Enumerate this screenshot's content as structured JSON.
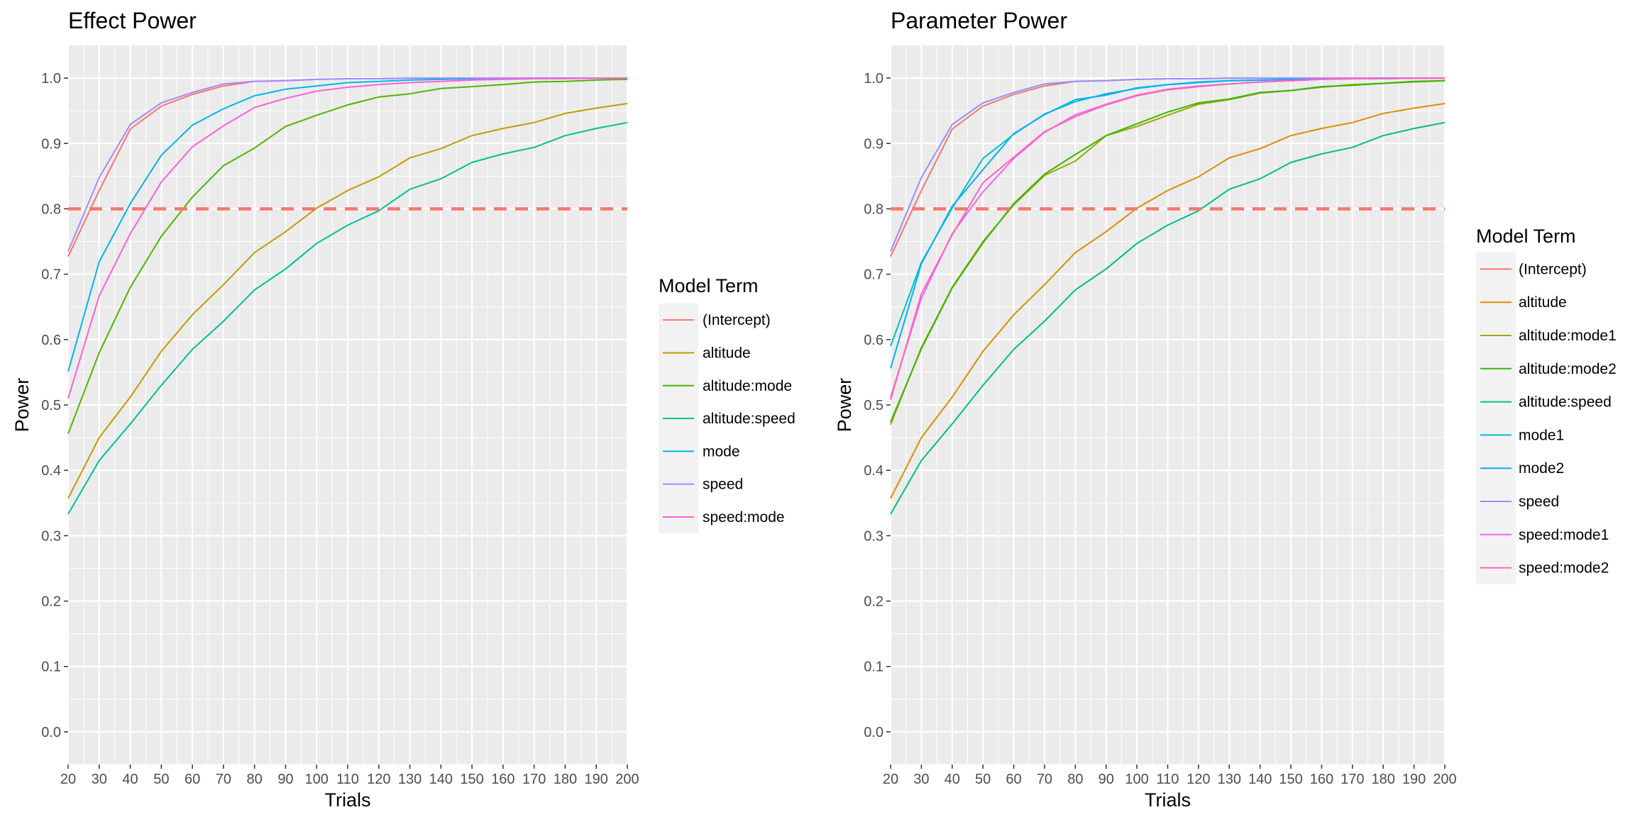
{
  "chart_data": [
    {
      "type": "line",
      "title": "Effect Power",
      "xlabel": "Trials",
      "ylabel": "Power",
      "x": [
        20,
        30,
        40,
        50,
        60,
        70,
        80,
        90,
        100,
        110,
        120,
        130,
        140,
        150,
        160,
        170,
        180,
        190,
        200
      ],
      "xlim": [
        20,
        200
      ],
      "ylim": [
        -0.05,
        1.05
      ],
      "xticks": [
        "20",
        "30",
        "40",
        "50",
        "60",
        "70",
        "80",
        "90",
        "100",
        "110",
        "120",
        "130",
        "140",
        "150",
        "160",
        "170",
        "180",
        "190",
        "200"
      ],
      "yticks": [
        "0.0",
        "0.1",
        "0.2",
        "0.3",
        "0.4",
        "0.5",
        "0.6",
        "0.7",
        "0.8",
        "0.9",
        "1.0"
      ],
      "grid": true,
      "reference_line": {
        "y": 0.8,
        "color": "#F8766D",
        "style": "dashed"
      },
      "legend": {
        "title": "Model Term",
        "position": "right"
      },
      "series": [
        {
          "name": "(Intercept)",
          "color": "#F8766D",
          "values": [
            0.727,
            0.828,
            0.922,
            0.957,
            0.975,
            0.988,
            0.995,
            0.996,
            0.998,
            0.999,
            0.999,
            1.0,
            1.0,
            1.0,
            1.0,
            1.0,
            1.0,
            1.0,
            1.0
          ]
        },
        {
          "name": "altitude",
          "color": "#C49A00",
          "values": [
            0.357,
            0.45,
            0.512,
            0.582,
            0.638,
            0.684,
            0.733,
            0.765,
            0.801,
            0.828,
            0.849,
            0.878,
            0.892,
            0.912,
            0.923,
            0.932,
            0.946,
            0.954,
            0.961
          ]
        },
        {
          "name": "altitude:mode",
          "color": "#53B400",
          "values": [
            0.456,
            0.58,
            0.68,
            0.758,
            0.818,
            0.866,
            0.893,
            0.926,
            0.943,
            0.959,
            0.971,
            0.976,
            0.984,
            0.987,
            0.99,
            0.994,
            0.995,
            0.997,
            0.998
          ]
        },
        {
          "name": "altitude:speed",
          "color": "#00C094",
          "values": [
            0.333,
            0.415,
            0.471,
            0.53,
            0.585,
            0.628,
            0.676,
            0.708,
            0.747,
            0.775,
            0.797,
            0.83,
            0.846,
            0.871,
            0.884,
            0.894,
            0.912,
            0.923,
            0.932
          ]
        },
        {
          "name": "mode",
          "color": "#00B6EB",
          "values": [
            0.551,
            0.719,
            0.808,
            0.882,
            0.928,
            0.953,
            0.973,
            0.983,
            0.988,
            0.993,
            0.995,
            0.997,
            0.998,
            0.999,
            0.999,
            1.0,
            1.0,
            1.0,
            1.0
          ]
        },
        {
          "name": "speed",
          "color": "#A58AFF",
          "values": [
            0.735,
            0.848,
            0.929,
            0.962,
            0.978,
            0.991,
            0.995,
            0.996,
            0.998,
            0.999,
            0.999,
            1.0,
            1.0,
            1.0,
            1.0,
            1.0,
            1.0,
            1.0,
            1.0
          ]
        },
        {
          "name": "speed:mode",
          "color": "#FB61D7",
          "values": [
            0.51,
            0.667,
            0.762,
            0.841,
            0.895,
            0.927,
            0.955,
            0.969,
            0.98,
            0.986,
            0.99,
            0.993,
            0.995,
            0.997,
            0.998,
            0.999,
            0.999,
            1.0,
            1.0
          ]
        }
      ]
    },
    {
      "type": "line",
      "title": "Parameter Power",
      "xlabel": "Trials",
      "ylabel": "Power",
      "x": [
        20,
        30,
        40,
        50,
        60,
        70,
        80,
        90,
        100,
        110,
        120,
        130,
        140,
        150,
        160,
        170,
        180,
        190,
        200
      ],
      "xlim": [
        20,
        200
      ],
      "ylim": [
        -0.05,
        1.05
      ],
      "xticks": [
        "20",
        "30",
        "40",
        "50",
        "60",
        "70",
        "80",
        "90",
        "100",
        "110",
        "120",
        "130",
        "140",
        "150",
        "160",
        "170",
        "180",
        "190",
        "200"
      ],
      "yticks": [
        "0.0",
        "0.1",
        "0.2",
        "0.3",
        "0.4",
        "0.5",
        "0.6",
        "0.7",
        "0.8",
        "0.9",
        "1.0"
      ],
      "grid": true,
      "reference_line": {
        "y": 0.8,
        "color": "#F8766D",
        "style": "dashed"
      },
      "legend": {
        "title": "Model Term",
        "position": "right"
      },
      "series": [
        {
          "name": "(Intercept)",
          "color": "#F8766D",
          "values": [
            0.727,
            0.828,
            0.922,
            0.957,
            0.975,
            0.988,
            0.995,
            0.996,
            0.998,
            0.999,
            0.999,
            1.0,
            1.0,
            1.0,
            1.0,
            1.0,
            1.0,
            1.0,
            1.0
          ]
        },
        {
          "name": "altitude",
          "color": "#D89000",
          "values": [
            0.357,
            0.45,
            0.512,
            0.582,
            0.638,
            0.684,
            0.733,
            0.765,
            0.801,
            0.828,
            0.849,
            0.878,
            0.892,
            0.912,
            0.923,
            0.932,
            0.946,
            0.954,
            0.961
          ]
        },
        {
          "name": "altitude:mode1",
          "color": "#A3A500",
          "values": [
            0.47,
            0.588,
            0.68,
            0.75,
            0.806,
            0.851,
            0.873,
            0.912,
            0.926,
            0.943,
            0.96,
            0.967,
            0.977,
            0.981,
            0.986,
            0.99,
            0.992,
            0.994,
            0.996
          ]
        },
        {
          "name": "altitude:mode2",
          "color": "#39B600",
          "values": [
            0.474,
            0.586,
            0.679,
            0.748,
            0.808,
            0.853,
            0.883,
            0.912,
            0.93,
            0.948,
            0.962,
            0.968,
            0.978,
            0.981,
            0.987,
            0.989,
            0.992,
            0.995,
            0.996
          ]
        },
        {
          "name": "altitude:speed",
          "color": "#00BF7D",
          "values": [
            0.333,
            0.415,
            0.471,
            0.53,
            0.585,
            0.628,
            0.676,
            0.708,
            0.747,
            0.775,
            0.797,
            0.83,
            0.846,
            0.871,
            0.884,
            0.894,
            0.912,
            0.923,
            0.932
          ]
        },
        {
          "name": "mode1",
          "color": "#00BFC4",
          "values": [
            0.59,
            0.718,
            0.801,
            0.877,
            0.914,
            0.945,
            0.964,
            0.976,
            0.984,
            0.99,
            0.993,
            0.996,
            0.997,
            0.998,
            0.999,
            0.999,
            1.0,
            1.0,
            1.0
          ]
        },
        {
          "name": "mode2",
          "color": "#00B0F6",
          "values": [
            0.556,
            0.716,
            0.804,
            0.86,
            0.915,
            0.944,
            0.967,
            0.974,
            0.985,
            0.99,
            0.994,
            0.996,
            0.997,
            0.998,
            0.999,
            0.999,
            1.0,
            1.0,
            1.0
          ]
        },
        {
          "name": "speed",
          "color": "#9590FF",
          "values": [
            0.735,
            0.848,
            0.929,
            0.962,
            0.978,
            0.991,
            0.995,
            0.996,
            0.998,
            0.999,
            0.999,
            1.0,
            1.0,
            1.0,
            1.0,
            1.0,
            1.0,
            1.0,
            1.0
          ]
        },
        {
          "name": "speed:mode1",
          "color": "#E76BF3",
          "values": [
            0.512,
            0.663,
            0.762,
            0.826,
            0.877,
            0.917,
            0.944,
            0.96,
            0.974,
            0.983,
            0.988,
            0.991,
            0.994,
            0.996,
            0.998,
            0.999,
            0.999,
            1.0,
            1.0
          ]
        },
        {
          "name": "speed:mode2",
          "color": "#FF62BC",
          "values": [
            0.508,
            0.67,
            0.76,
            0.84,
            0.879,
            0.918,
            0.941,
            0.959,
            0.973,
            0.982,
            0.987,
            0.991,
            0.994,
            0.996,
            0.998,
            0.999,
            0.999,
            1.0,
            1.0
          ]
        }
      ]
    }
  ]
}
